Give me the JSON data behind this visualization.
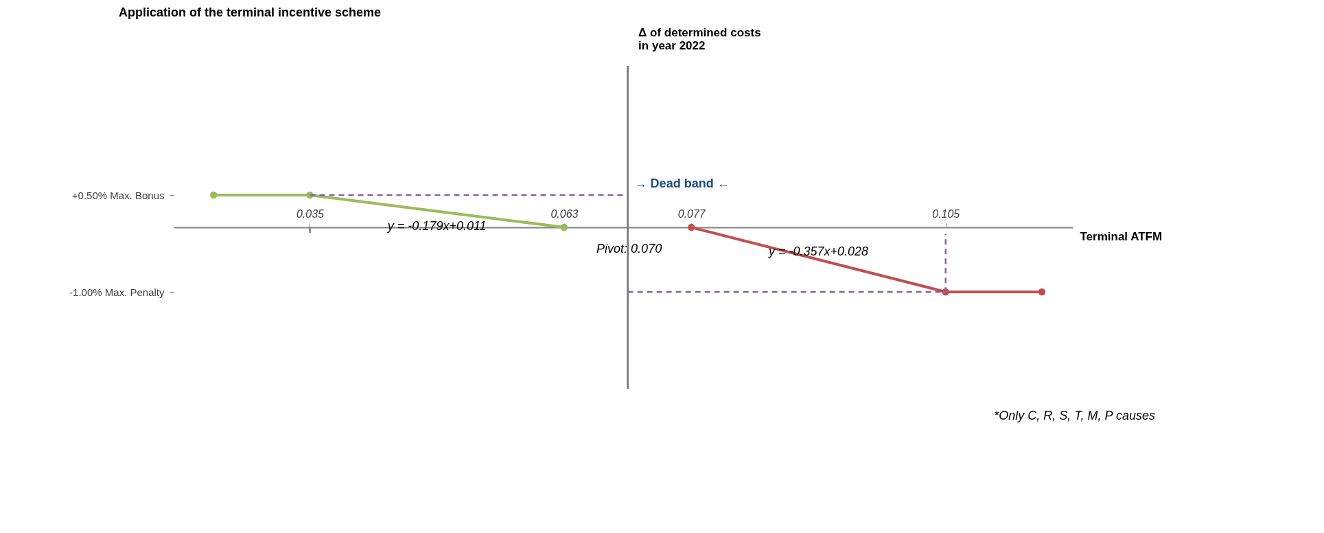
{
  "chart_data": {
    "type": "line",
    "title": "Application of the terminal incentive scheme",
    "xlabel": "Terminal ATFM",
    "ylabel": "Δ of determined costs\nin year 2022",
    "xlim": [
      0.02,
      0.119
    ],
    "ylim": [
      -2.5,
      2.5
    ],
    "xticks": [
      0.035,
      0.063,
      0.077,
      0.105
    ],
    "yticks": [
      {
        "value": 0.5,
        "label": "+0.50% Max. Bonus"
      },
      {
        "value": -1.0,
        "label": "-1.00% Max. Penalty"
      }
    ],
    "series": [
      {
        "color": "#9bbb59",
        "marker": "circle",
        "line_style": "solid",
        "x": [
          0.0244,
          0.035,
          0.063
        ],
        "values": [
          0.5,
          0.5,
          0
        ]
      },
      {
        "color": "#c0504d",
        "marker": "circle",
        "line_style": "solid",
        "x": [
          0.077,
          0.105,
          0.1156
        ],
        "values": [
          0,
          -1.0,
          -1.0
        ]
      },
      {
        "color": "#8064a2",
        "marker": "none",
        "line_style": "dashed",
        "x": [
          0.035,
          0.07
        ],
        "values": [
          0.5,
          0.5
        ]
      },
      {
        "color": "#8064a2",
        "marker": "none",
        "line_style": "dashed",
        "x": [
          0.035,
          0.035
        ],
        "values": [
          0,
          -0.1
        ]
      },
      {
        "color": "#8064a2",
        "marker": "none",
        "line_style": "dashed",
        "x": [
          0.07,
          0.105,
          0.105
        ],
        "values": [
          -1.0,
          -1.0,
          -0.1
        ]
      }
    ],
    "annotations": [
      {
        "text": "y = -0.179x+0.011",
        "x": 0.049,
        "y": 0.25
      },
      {
        "text": "y = -0.357x+0.028",
        "x": 0.091,
        "y": -0.55
      },
      "→ Dead band ←",
      "Pivot: 0.070",
      "*Only C, R, S, T, M, P causes"
    ],
    "ref_lines": [
      {
        "axis": "x",
        "value": 0.07,
        "color": "#808080"
      }
    ],
    "grid": false
  }
}
